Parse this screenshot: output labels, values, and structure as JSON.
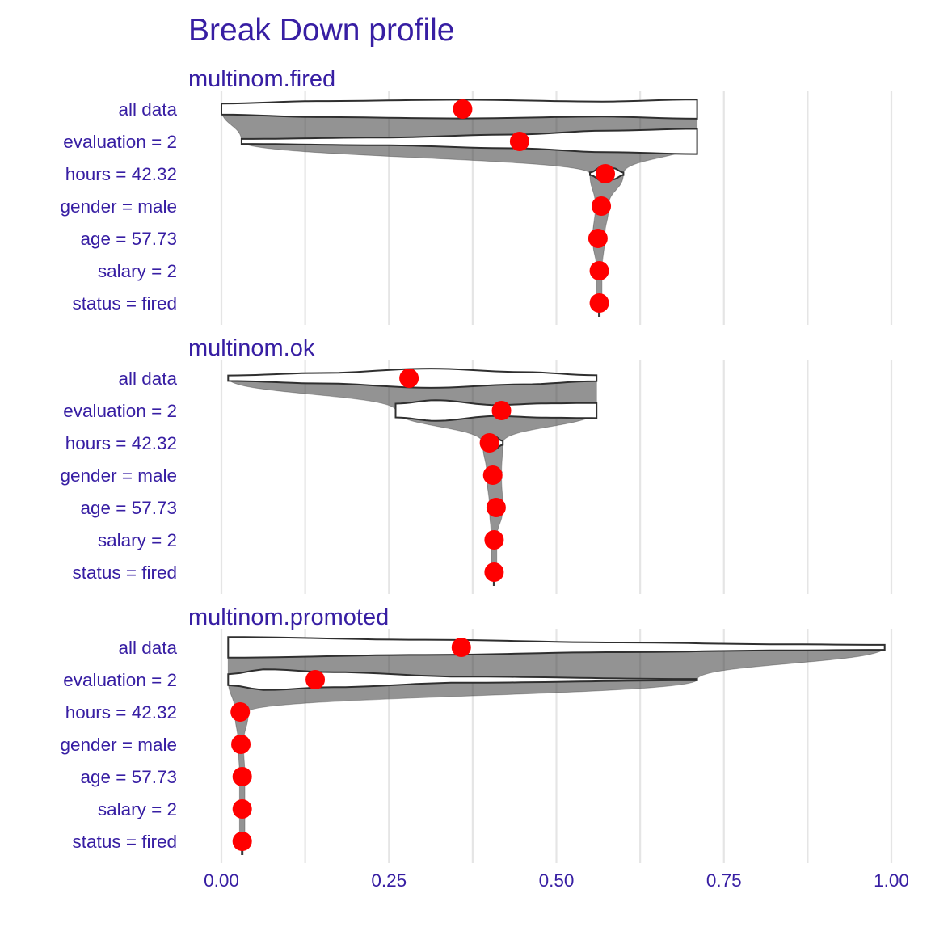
{
  "title": "Break Down profile",
  "colors": {
    "text": "#371ea3",
    "point": "#ff0000",
    "grid": "#e5e5e5",
    "violin_stroke": "#2f2f2f",
    "violin_fill": "#ffffff",
    "band": "#3a3a3a"
  },
  "chart_data": {
    "type": "violin",
    "title": "Break Down profile",
    "xlim": [
      0,
      1
    ],
    "x_ticks": [
      0,
      0.25,
      0.5,
      0.75,
      1
    ],
    "x_tick_labels": [
      "0.00",
      "0.25",
      "0.50",
      "0.75",
      "1.00"
    ],
    "x_minor_grid": [
      0.125,
      0.375,
      0.625,
      0.875
    ],
    "grid": true,
    "variables": [
      "all data",
      "evaluation = 2",
      "hours = 42.32",
      "gender = male",
      "age = 57.73",
      "salary = 2",
      "status = fired"
    ],
    "panels": [
      {
        "name": "multinom.fired",
        "points": [
          0.36,
          0.445,
          0.573,
          0.567,
          0.562,
          0.564,
          0.564
        ],
        "violins": [
          {
            "row": 0,
            "min": 0.0,
            "max": 0.71,
            "profile": [
              [
                0.0,
                0.4
              ],
              [
                0.2,
                0.58
              ],
              [
                0.5,
                0.68
              ],
              [
                0.8,
                0.55
              ],
              [
                1.0,
                0.7
              ]
            ]
          },
          {
            "row": 1,
            "min": 0.03,
            "max": 0.71,
            "profile": [
              [
                0.0,
                0.18
              ],
              [
                0.3,
                0.28
              ],
              [
                0.6,
                0.5
              ],
              [
                0.8,
                0.78
              ],
              [
                1.0,
                0.92
              ]
            ]
          },
          {
            "row": 2,
            "min": 0.55,
            "max": 0.6,
            "profile": [
              [
                0.0,
                0.1
              ],
              [
                0.4,
                0.55
              ],
              [
                0.7,
                0.4
              ],
              [
                1.0,
                0.1
              ]
            ]
          },
          {
            "row": 3,
            "min": 0.558,
            "max": 0.578,
            "profile": [
              [
                0.0,
                0.2
              ],
              [
                0.5,
                0.5
              ],
              [
                1.0,
                0.2
              ]
            ]
          },
          {
            "row": 4,
            "min": 0.554,
            "max": 0.572,
            "profile": [
              [
                0.0,
                0.2
              ],
              [
                0.5,
                0.5
              ],
              [
                1.0,
                0.2
              ]
            ]
          }
        ]
      },
      {
        "name": "multinom.ok",
        "points": [
          0.28,
          0.418,
          0.4,
          0.405,
          0.41,
          0.407,
          0.407
        ],
        "violins": [
          {
            "row": 0,
            "min": 0.01,
            "max": 0.56,
            "profile": [
              [
                0.0,
                0.2
              ],
              [
                0.25,
                0.38
              ],
              [
                0.55,
                0.7
              ],
              [
                0.8,
                0.45
              ],
              [
                1.0,
                0.22
              ]
            ]
          },
          {
            "row": 1,
            "min": 0.26,
            "max": 0.56,
            "profile": [
              [
                0.0,
                0.5
              ],
              [
                0.2,
                0.75
              ],
              [
                0.5,
                0.4
              ],
              [
                0.75,
                0.52
              ],
              [
                1.0,
                0.55
              ]
            ]
          },
          {
            "row": 2,
            "min": 0.39,
            "max": 0.42,
            "profile": [
              [
                0.0,
                0.15
              ],
              [
                0.5,
                0.55
              ],
              [
                1.0,
                0.15
              ]
            ]
          },
          {
            "row": 3,
            "min": 0.396,
            "max": 0.418,
            "profile": [
              [
                0.0,
                0.2
              ],
              [
                0.5,
                0.5
              ],
              [
                1.0,
                0.2
              ]
            ]
          },
          {
            "row": 4,
            "min": 0.4,
            "max": 0.42,
            "profile": [
              [
                0.0,
                0.2
              ],
              [
                0.5,
                0.5
              ],
              [
                1.0,
                0.2
              ]
            ]
          }
        ]
      },
      {
        "name": "multinom.promoted",
        "points": [
          0.358,
          0.14,
          0.028,
          0.029,
          0.031,
          0.031,
          0.031
        ],
        "violins": [
          {
            "row": 0,
            "min": 0.01,
            "max": 0.99,
            "profile": [
              [
                0.0,
                0.75
              ],
              [
                0.3,
                0.55
              ],
              [
                0.6,
                0.35
              ],
              [
                0.85,
                0.22
              ],
              [
                1.0,
                0.18
              ]
            ]
          },
          {
            "row": 1,
            "min": 0.01,
            "max": 0.71,
            "profile": [
              [
                0.0,
                0.4
              ],
              [
                0.08,
                0.75
              ],
              [
                0.22,
                0.55
              ],
              [
                0.5,
                0.22
              ],
              [
                1.0,
                0.05
              ]
            ]
          },
          {
            "row": 2,
            "min": 0.02,
            "max": 0.04,
            "profile": [
              [
                0.0,
                0.2
              ],
              [
                0.5,
                0.45
              ],
              [
                1.0,
                0.2
              ]
            ]
          }
        ]
      }
    ]
  }
}
